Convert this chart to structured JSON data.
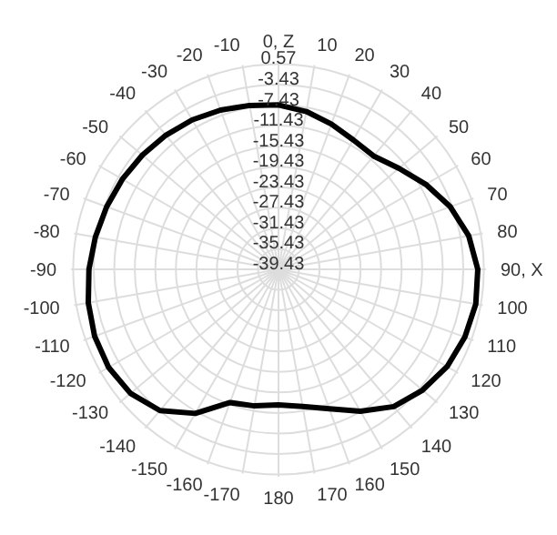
{
  "chart_data": {
    "type": "radar",
    "categories": [
      "0, Z",
      "10",
      "20",
      "30",
      "40",
      "50",
      "60",
      "70",
      "80",
      "90, X",
      "100",
      "110",
      "120",
      "130",
      "140",
      "150",
      "160",
      "170",
      "180",
      "-170",
      "-160",
      "-150",
      "-140",
      "-130",
      "-120",
      "-110",
      "-100",
      "-90",
      "-80",
      "-70",
      "-60",
      "-50",
      "-40",
      "-30",
      "-20",
      "-10"
    ],
    "series": [
      {
        "color": "#000000",
        "values": [
          -7.4,
          -8.2,
          -9.3,
          -10.3,
          -10.6,
          -8.8,
          -6.3,
          -3.8,
          -1.8,
          -0.6,
          -0.4,
          -0.8,
          -1.5,
          -2.8,
          -4.5,
          -7.5,
          -10.5,
          -12.3,
          -13,
          -12.4,
          -11.8,
          -7,
          -3.5,
          -1.8,
          -1.2,
          -1.3,
          -1.8,
          -2.5,
          -3.2,
          -3.8,
          -4.3,
          -4.8,
          -5.3,
          -5.8,
          -6.4,
          -7
        ]
      }
    ],
    "ylim": [
      -39.43,
      0.57
    ],
    "yticks": [
      0.57,
      -3.43,
      -7.43,
      -11.43,
      -15.43,
      -19.43,
      -23.43,
      -27.43,
      -31.43,
      -35.43,
      -39.43
    ],
    "grid": true
  }
}
